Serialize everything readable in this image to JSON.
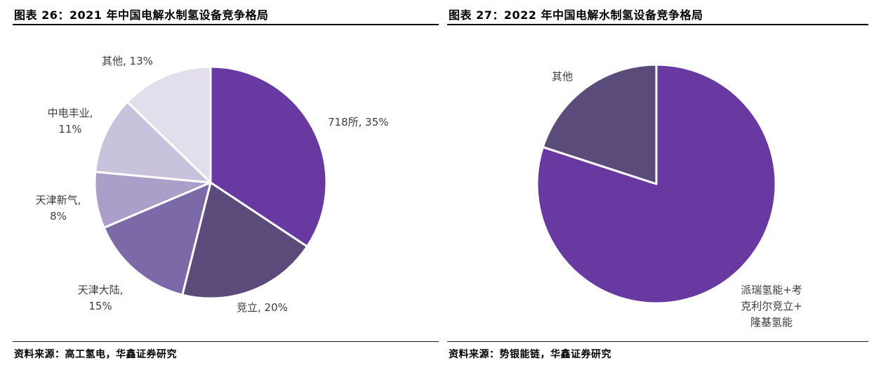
{
  "figures": [
    {
      "title": "图表 26：2021 年中国电解水制氢设备竞争格局",
      "source": "资料来源：高工氢电，华鑫证券研究"
    },
    {
      "title": "图表 27：2022 年中国电解水制氢设备竞争格局",
      "source": "资料来源：势银能链，华鑫证券研究"
    }
  ],
  "chart_data": [
    {
      "type": "pie",
      "title": "2021 年中国电解水制氢设备竞争格局",
      "start_angle_deg": 0,
      "direction": "clockwise",
      "unit": "%",
      "slices": [
        {
          "name": "718所",
          "value": 35,
          "color": "#6839A0",
          "label": "718所, 35%"
        },
        {
          "name": "竞立",
          "value": 20,
          "color": "#5A4B7B",
          "label": "竞立, 20%"
        },
        {
          "name": "天津大陆",
          "value": 15,
          "color": "#7C69A8",
          "label": "天津大陆,\n15%"
        },
        {
          "name": "天津新气",
          "value": 8,
          "color": "#AB9EC8",
          "label": "天津新气,\n8%"
        },
        {
          "name": "中电丰业",
          "value": 11,
          "color": "#C9C2DC",
          "label": "中电丰业,\n11%"
        },
        {
          "name": "其他",
          "value": 13,
          "color": "#E2DEEC",
          "label": "其他, 13%"
        }
      ]
    },
    {
      "type": "pie",
      "title": "2022 年中国电解水制氢设备竞争格局",
      "start_angle_deg": 0,
      "direction": "clockwise",
      "unit": "%",
      "slices": [
        {
          "name": "派瑞氢能+考克利尔竞立+隆基氢能",
          "value": 80,
          "color": "#6839A0",
          "label": "派瑞氢能+考\n克利尔竞立+\n隆基氢能"
        },
        {
          "name": "其他",
          "value": 20,
          "color": "#5A4B7B",
          "label": "其他"
        }
      ]
    }
  ]
}
